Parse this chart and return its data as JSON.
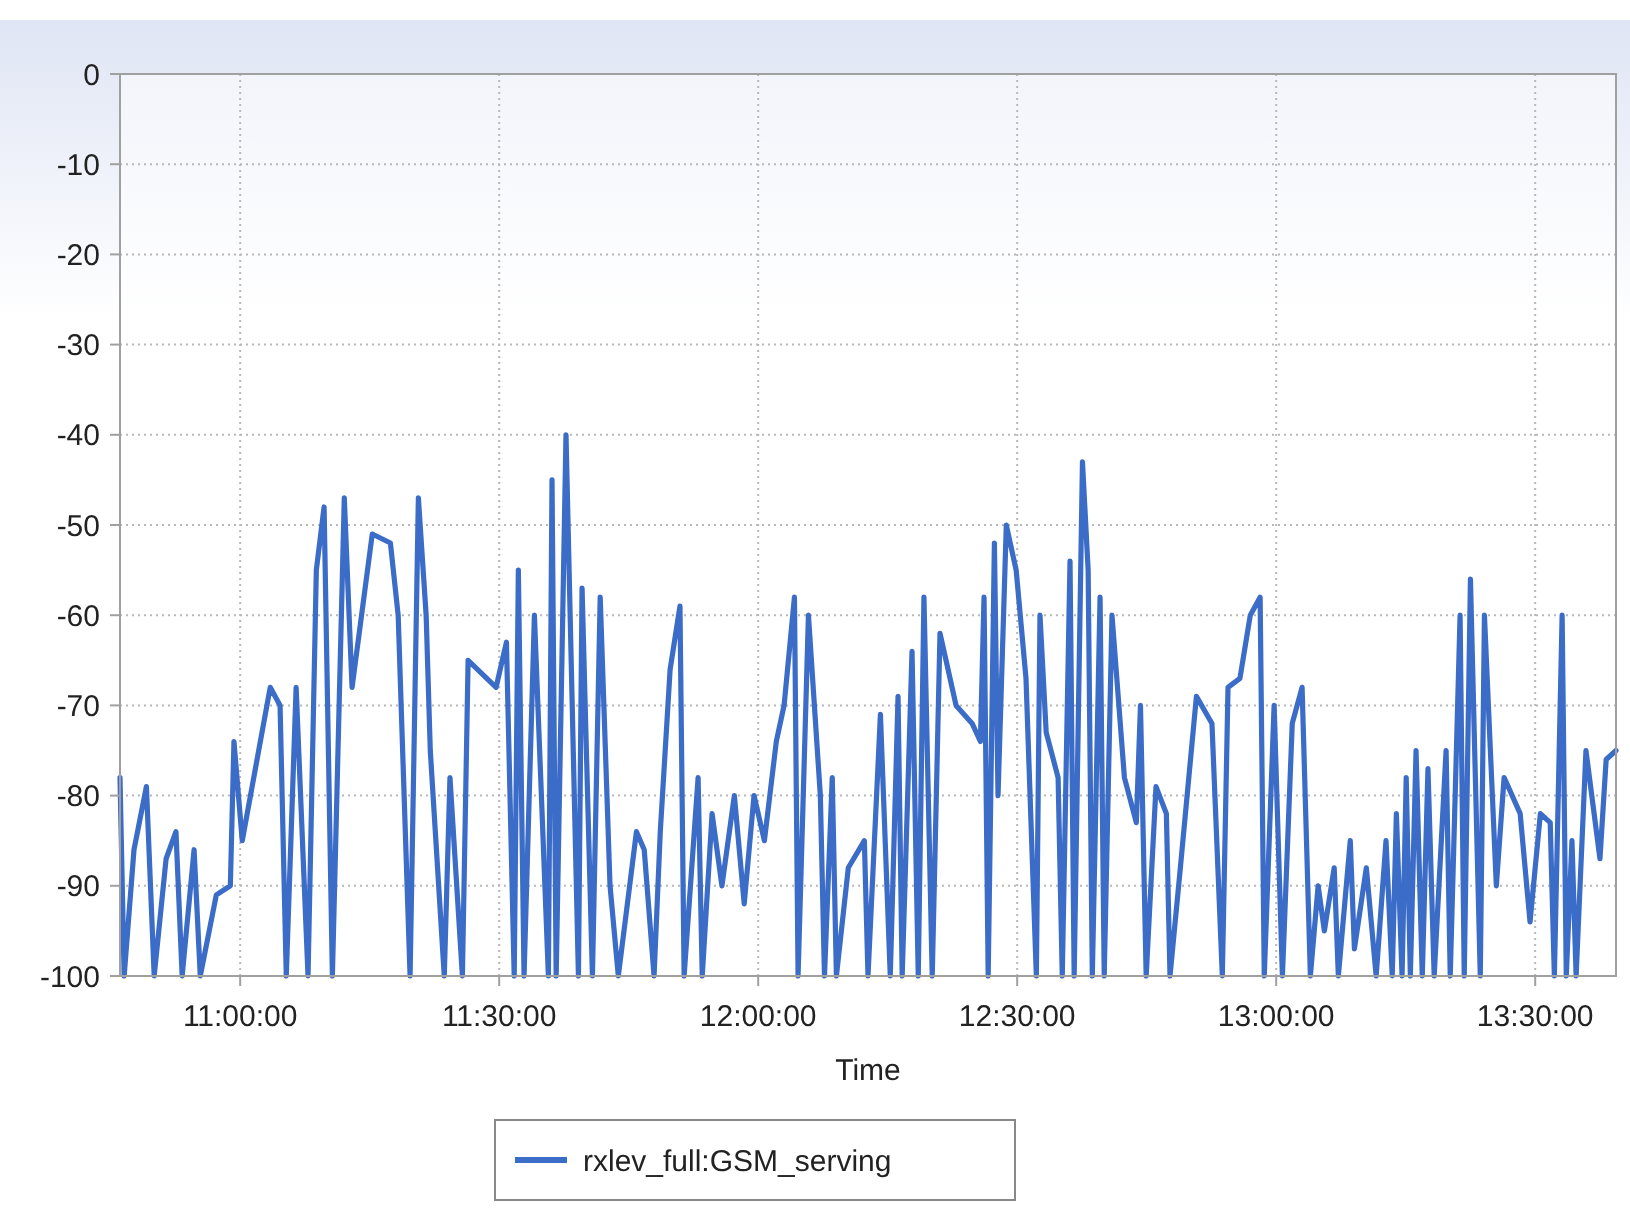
{
  "chart_data": {
    "type": "line",
    "xlabel": "Time",
    "xlim": [
      10.768,
      13.656
    ],
    "xticks": [
      {
        "value": 11,
        "label": "11:00:00"
      },
      {
        "value": 11.5,
        "label": "11:30:00"
      },
      {
        "value": 12,
        "label": "12:00:00"
      },
      {
        "value": 12.5,
        "label": "12:30:00"
      },
      {
        "value": 13,
        "label": "13:00:00"
      },
      {
        "value": 13.5,
        "label": "13:30:00"
      }
    ],
    "ylim": [
      -100,
      0
    ],
    "yticks": [
      -100,
      -90,
      -80,
      -70,
      -60,
      -50,
      -40,
      -30,
      -20,
      -10,
      0
    ],
    "grid": true,
    "legend": "bottom",
    "series": [
      {
        "name": "rxlev_full:GSM_serving",
        "color": "#3a6cc8",
        "x": [
          10.768,
          10.776,
          10.795,
          10.819,
          10.834,
          10.857,
          10.876,
          10.888,
          10.911,
          10.923,
          10.954,
          10.981,
          10.988,
          11.004,
          11.058,
          11.077,
          11.089,
          11.108,
          11.131,
          11.147,
          11.162,
          11.178,
          11.201,
          11.216,
          11.255,
          11.29,
          11.305,
          11.328,
          11.344,
          11.359,
          11.367,
          11.394,
          11.405,
          11.429,
          11.44,
          11.494,
          11.514,
          11.529,
          11.537,
          11.548,
          11.568,
          11.595,
          11.602,
          11.61,
          11.629,
          11.653,
          11.66,
          11.68,
          11.695,
          11.714,
          11.73,
          11.765,
          11.78,
          11.799,
          11.811,
          11.83,
          11.849,
          11.857,
          11.884,
          11.892,
          11.911,
          11.93,
          11.954,
          11.973,
          11.992,
          12.012,
          12.035,
          12.05,
          12.07,
          12.077,
          12.097,
          12.12,
          12.128,
          12.143,
          12.151,
          12.174,
          12.205,
          12.212,
          12.236,
          12.255,
          12.27,
          12.278,
          12.297,
          12.309,
          12.32,
          12.336,
          12.351,
          12.382,
          12.413,
          12.429,
          12.436,
          12.444,
          12.456,
          12.463,
          12.479,
          12.498,
          12.517,
          12.537,
          12.544,
          12.556,
          12.579,
          12.587,
          12.602,
          12.61,
          12.626,
          12.637,
          12.645,
          12.66,
          12.668,
          12.683,
          12.707,
          12.73,
          12.738,
          12.749,
          12.768,
          12.788,
          12.795,
          12.815,
          12.846,
          12.876,
          12.896,
          12.907,
          12.93,
          12.95,
          12.969,
          12.977,
          12.996,
          13.012,
          13.031,
          13.05,
          13.066,
          13.081,
          13.093,
          13.112,
          13.12,
          13.143,
          13.151,
          13.174,
          13.193,
          13.212,
          13.224,
          13.232,
          13.243,
          13.251,
          13.259,
          13.27,
          13.282,
          13.293,
          13.305,
          13.328,
          13.336,
          13.355,
          13.363,
          13.375,
          13.394,
          13.402,
          13.425,
          13.44,
          13.471,
          13.49,
          13.51,
          13.529,
          13.537,
          13.552,
          13.56,
          13.571,
          13.579,
          13.598,
          13.625,
          13.637,
          13.656
        ],
        "values": [
          -78,
          -100,
          -86,
          -79,
          -100,
          -87,
          -84,
          -100,
          -86,
          -100,
          -91,
          -90,
          -74,
          -85,
          -68,
          -70,
          -100,
          -68,
          -100,
          -55,
          -48,
          -100,
          -47,
          -68,
          -51,
          -52,
          -60,
          -100,
          -47,
          -60,
          -75,
          -100,
          -78,
          -100,
          -65,
          -68,
          -63,
          -100,
          -55,
          -100,
          -60,
          -100,
          -45,
          -100,
          -40,
          -100,
          -57,
          -100,
          -58,
          -90,
          -100,
          -84,
          -86,
          -100,
          -84,
          -66,
          -59,
          -100,
          -78,
          -100,
          -82,
          -90,
          -80,
          -92,
          -80,
          -85,
          -74,
          -70,
          -58,
          -100,
          -60,
          -80,
          -100,
          -78,
          -100,
          -88,
          -85,
          -100,
          -71,
          -100,
          -69,
          -100,
          -64,
          -100,
          -58,
          -100,
          -62,
          -70,
          -72,
          -74,
          -58,
          -100,
          -52,
          -80,
          -50,
          -55,
          -67,
          -100,
          -60,
          -73,
          -78,
          -100,
          -54,
          -100,
          -43,
          -55,
          -100,
          -58,
          -100,
          -60,
          -78,
          -83,
          -70,
          -100,
          -79,
          -82,
          -100,
          -88,
          -69,
          -72,
          -100,
          -68,
          -67,
          -60,
          -58,
          -100,
          -70,
          -100,
          -72,
          -68,
          -100,
          -90,
          -95,
          -88,
          -100,
          -85,
          -97,
          -88,
          -100,
          -85,
          -100,
          -82,
          -100,
          -78,
          -100,
          -75,
          -100,
          -77,
          -100,
          -75,
          -100,
          -60,
          -100,
          -56,
          -100,
          -60,
          -90,
          -78,
          -82,
          -94,
          -82,
          -83,
          -100,
          -60,
          -100,
          -85,
          -100,
          -75,
          -87,
          -76,
          -75
        ]
      }
    ]
  }
}
